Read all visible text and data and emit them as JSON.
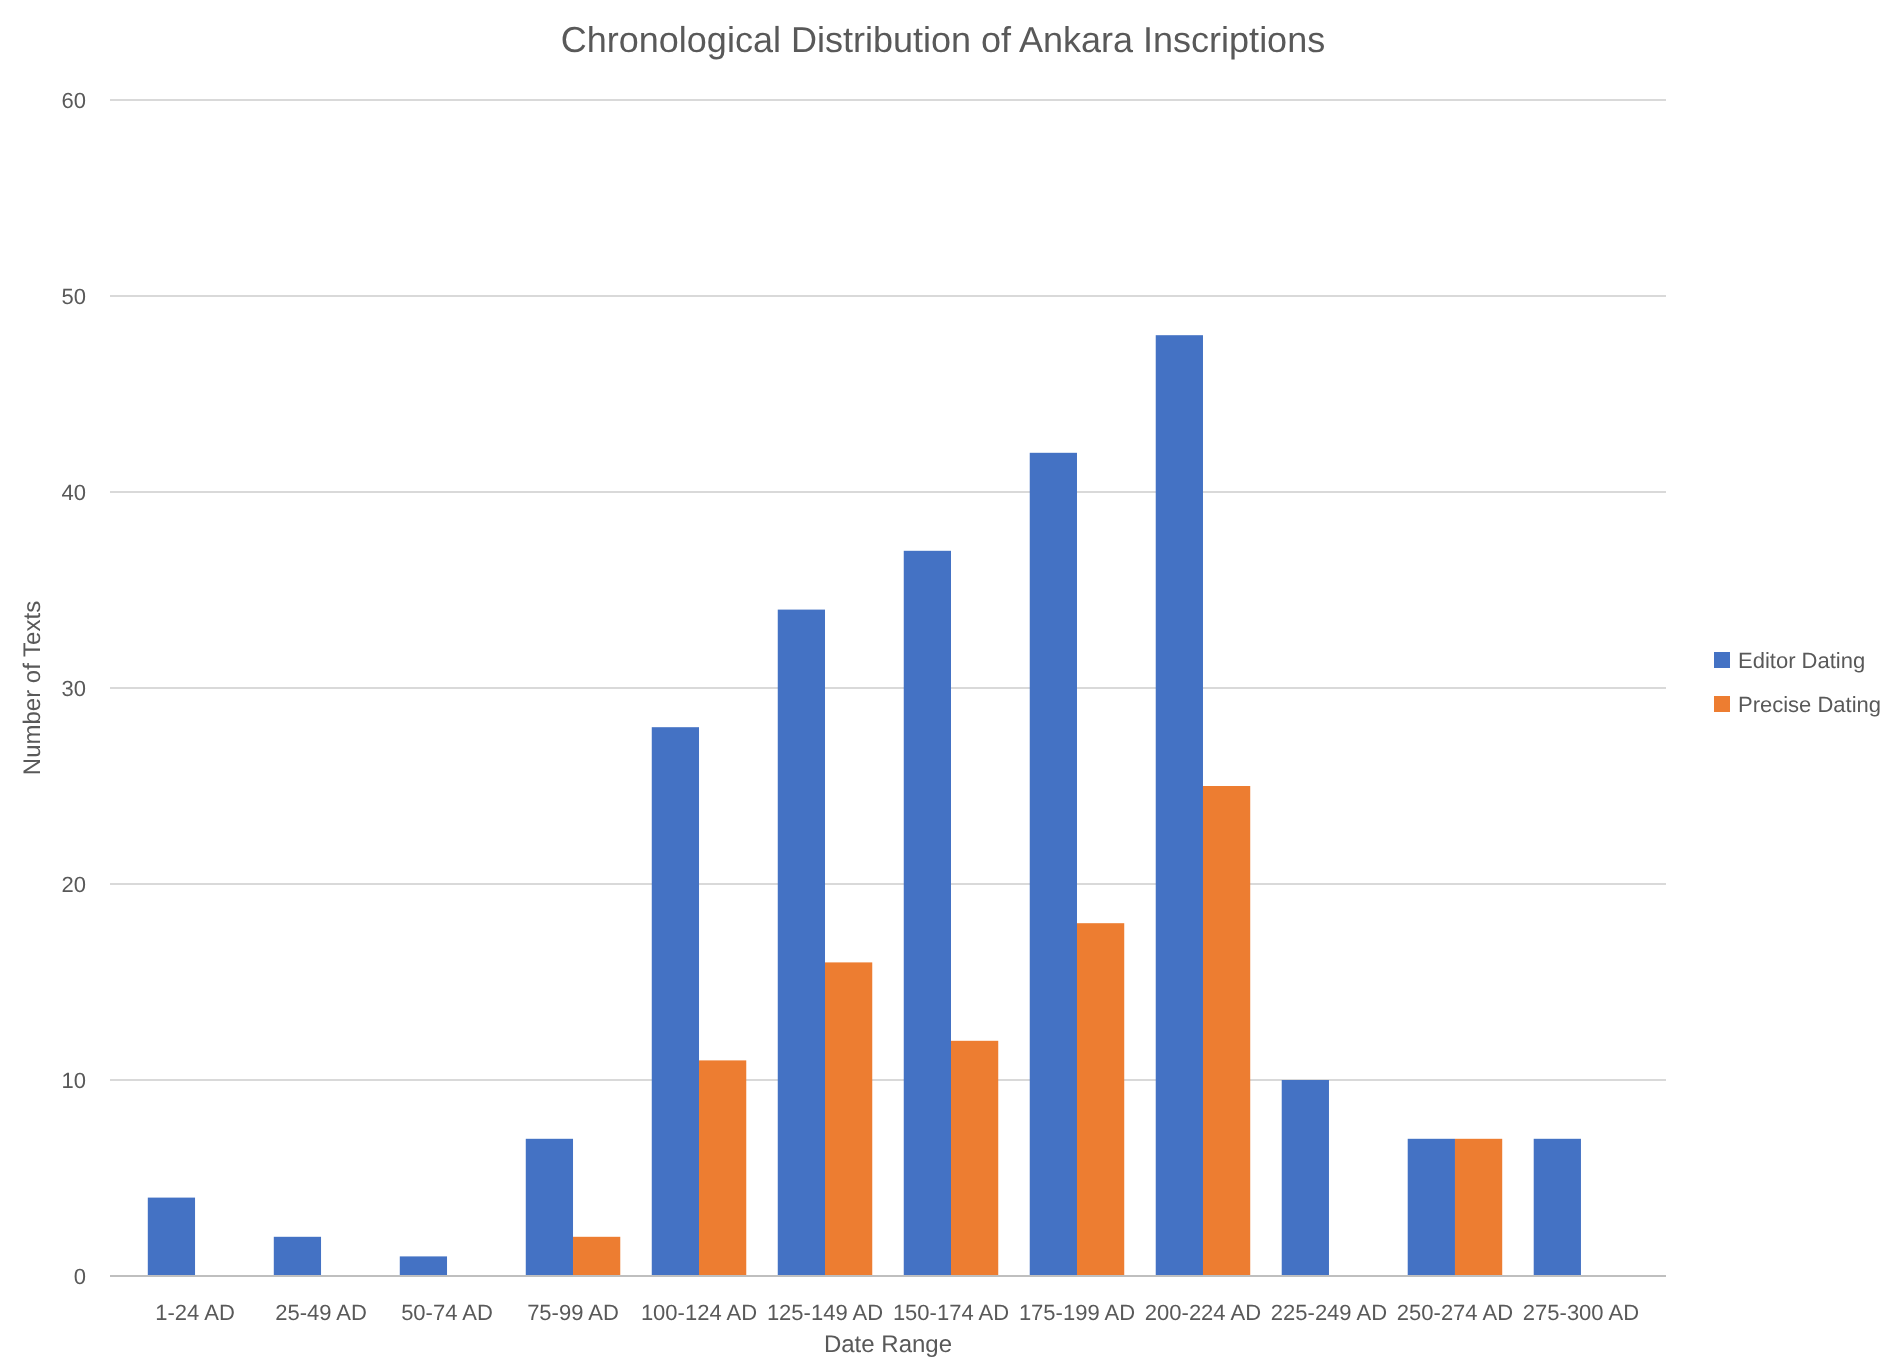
{
  "chart_data": {
    "type": "bar",
    "title": "Chronological Distribution of Ankara Inscriptions",
    "xlabel": "Date Range",
    "ylabel": "Number of Texts",
    "categories": [
      "1-24 AD",
      "25-49 AD",
      "50-74 AD",
      "75-99 AD",
      "100-124 AD",
      "125-149 AD",
      "150-174 AD",
      "175-199 AD",
      "200-224 AD",
      "225-249 AD",
      "250-274 AD",
      "275-300 AD"
    ],
    "series": [
      {
        "name": "Editor Dating",
        "color": "#4472c4",
        "values": [
          4,
          2,
          1,
          7,
          28,
          34,
          37,
          42,
          48,
          10,
          7,
          7
        ]
      },
      {
        "name": "Precise Dating",
        "color": "#ed7d31",
        "values": [
          null,
          null,
          null,
          2,
          11,
          16,
          12,
          18,
          25,
          null,
          7,
          null
        ]
      }
    ],
    "ylim": [
      0,
      60
    ],
    "yticks": [
      0,
      10,
      20,
      30,
      40,
      50,
      60
    ],
    "grid": "y",
    "legend": "right"
  }
}
